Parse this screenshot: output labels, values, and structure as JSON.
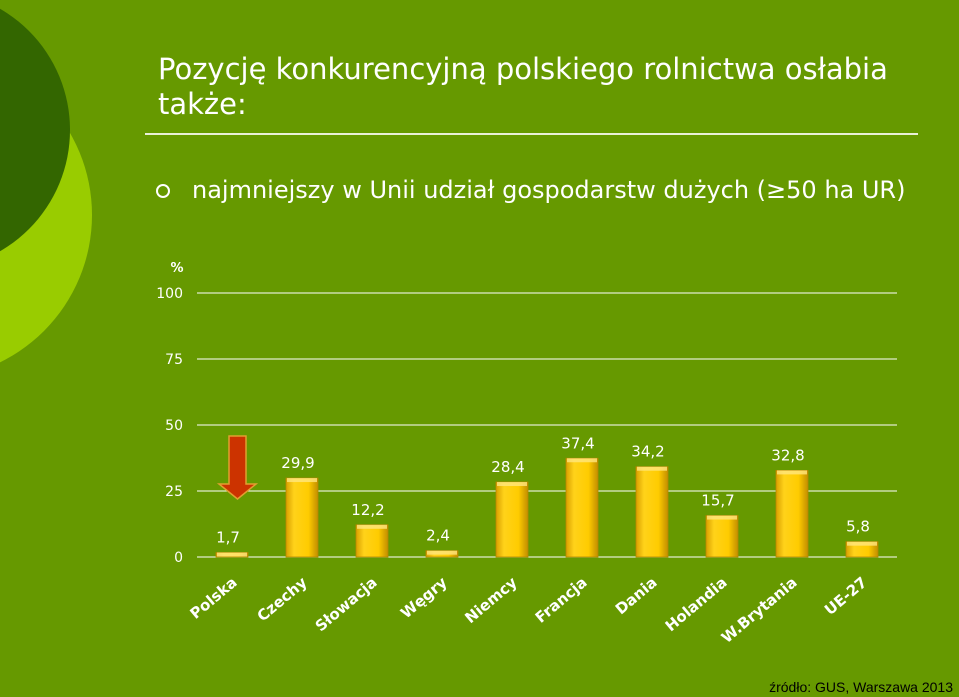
{
  "slide": {
    "title": "Pozycję konkurencyjną polskiego rolnictwa osłabia także:",
    "bullet": "najmniejszy w Unii udział gospodarstw dużych (≥50 ha UR)",
    "source": "źródło: GUS, Warszawa 2013"
  },
  "colors": {
    "background": "#669900",
    "bar": "#ffcc00",
    "arrow": "#cc3300"
  },
  "chart_data": {
    "type": "bar",
    "categories": [
      "Polska",
      "Czechy",
      "Słowacja",
      "Węgry",
      "Niemcy",
      "Francja",
      "Dania",
      "Holandia",
      "W.Brytania",
      "UE-27"
    ],
    "values": [
      1.7,
      29.9,
      12.2,
      2.4,
      28.4,
      37.4,
      34.2,
      15.7,
      32.8,
      5.8
    ],
    "value_labels": [
      "1,7",
      "29,9",
      "12,2",
      "2,4",
      "28,4",
      "37,4",
      "34,2",
      "15,7",
      "32,8",
      "5,8"
    ],
    "ylabel": "%",
    "ylim": [
      0,
      100
    ],
    "yticks": [
      0,
      25,
      50,
      75,
      100
    ],
    "grid": true,
    "highlight": "Polska"
  }
}
